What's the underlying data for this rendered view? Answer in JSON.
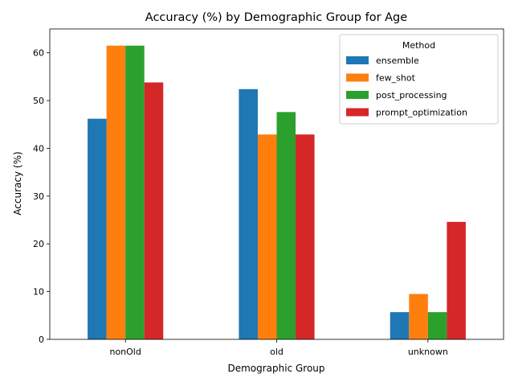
{
  "chart_data": {
    "type": "bar",
    "title": "Accuracy (%) by Demographic Group for Age",
    "xlabel": "Demographic Group",
    "ylabel": "Accuracy (%)",
    "categories": [
      "nonOld",
      "old",
      "unknown"
    ],
    "ylim": [
      0,
      65
    ],
    "yticks": [
      0,
      10,
      20,
      30,
      40,
      50,
      60
    ],
    "grid": false,
    "legend": {
      "title": "Method",
      "placement": "top-right"
    },
    "series": [
      {
        "name": "ensemble",
        "color": "#1f77b4",
        "values": [
          46.2,
          52.4,
          5.7
        ]
      },
      {
        "name": "few_shot",
        "color": "#ff7f0e",
        "values": [
          61.5,
          42.9,
          9.5
        ]
      },
      {
        "name": "post_processing",
        "color": "#2ca02c",
        "values": [
          61.5,
          47.6,
          5.7
        ]
      },
      {
        "name": "prompt_optimization",
        "color": "#d62728",
        "values": [
          53.8,
          42.9,
          24.6
        ]
      }
    ]
  }
}
